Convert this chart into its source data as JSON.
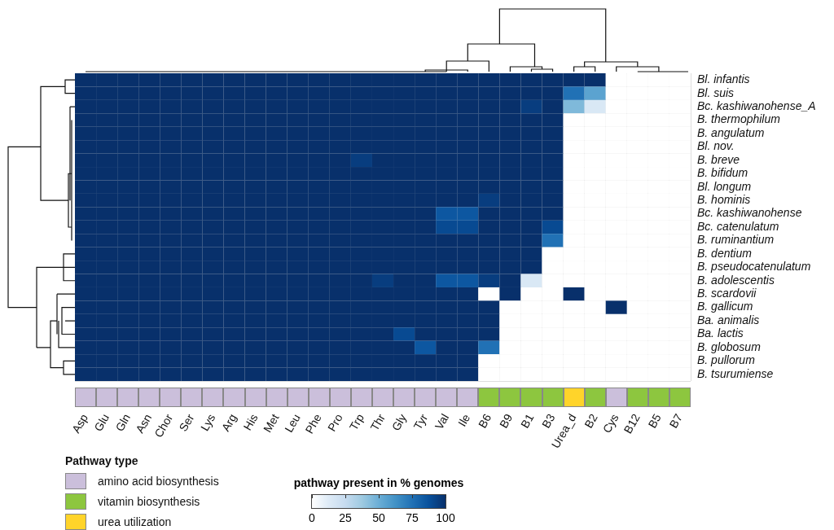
{
  "chart_data": [
    {
      "type": "heatmap",
      "grid": true,
      "clabel": "pathway present in % genomes",
      "clim": [
        0,
        100
      ],
      "cticks": [
        0,
        25,
        50,
        75,
        100
      ],
      "categories": [
        "Asp",
        "Glu",
        "Gln",
        "Asn",
        "Chor",
        "Ser",
        "Lys",
        "Arg",
        "His",
        "Met",
        "Leu",
        "Phe",
        "Pro",
        "Trp",
        "Thr",
        "Gly",
        "Tyr",
        "Val",
        "Ile",
        "B6",
        "B9",
        "B1",
        "B3",
        "Urea_d",
        "B2",
        "Cys",
        "B12",
        "B5",
        "B7"
      ],
      "y_categories": [
        "Bl. infantis",
        "Bl. suis",
        "Bc. kashiwanohense_A",
        "B. thermophilum",
        "B. angulatum",
        "Bl. nov.",
        "B. breve",
        "B. bifidum",
        "Bl. longum",
        "B. hominis",
        "Bc. kashiwanohense",
        "Bc. catenulatum",
        "B. ruminantium",
        "B. dentium",
        "B. pseudocatenulatum",
        "B. adolescentis",
        "B. scardovii",
        "B. gallicum",
        "Ba. animalis",
        "Ba. lactis",
        "B. globosum",
        "B. pullorum",
        "B. tsurumiense"
      ],
      "cells": [
        [
          100,
          100,
          100,
          100,
          100,
          100,
          100,
          100,
          100,
          100,
          100,
          100,
          100,
          100,
          100,
          100,
          100,
          100,
          100,
          100,
          100,
          100,
          100,
          100,
          100,
          0,
          0,
          0,
          0
        ],
        [
          100,
          100,
          100,
          100,
          100,
          100,
          100,
          100,
          100,
          100,
          100,
          100,
          100,
          100,
          100,
          100,
          100,
          100,
          100,
          100,
          100,
          100,
          100,
          75,
          55,
          0,
          0,
          0,
          0
        ],
        [
          100,
          100,
          100,
          100,
          100,
          100,
          100,
          100,
          100,
          100,
          100,
          100,
          100,
          100,
          100,
          100,
          100,
          100,
          100,
          100,
          100,
          95,
          100,
          45,
          15,
          0,
          0,
          0,
          0
        ],
        [
          100,
          100,
          100,
          100,
          100,
          100,
          100,
          100,
          100,
          100,
          100,
          100,
          100,
          100,
          100,
          100,
          100,
          100,
          100,
          100,
          100,
          100,
          100,
          0,
          0,
          0,
          0,
          0,
          0
        ],
        [
          100,
          100,
          100,
          100,
          100,
          100,
          100,
          100,
          100,
          100,
          100,
          100,
          100,
          100,
          100,
          100,
          100,
          100,
          100,
          100,
          100,
          100,
          100,
          0,
          0,
          0,
          0,
          0,
          0
        ],
        [
          100,
          100,
          100,
          100,
          100,
          100,
          100,
          100,
          100,
          100,
          100,
          100,
          100,
          100,
          100,
          100,
          100,
          100,
          100,
          100,
          100,
          100,
          100,
          0,
          0,
          0,
          0,
          0,
          0
        ],
        [
          100,
          100,
          100,
          100,
          100,
          100,
          100,
          100,
          100,
          100,
          100,
          100,
          100,
          95,
          100,
          100,
          100,
          100,
          100,
          100,
          100,
          100,
          100,
          0,
          0,
          0,
          0,
          0,
          0
        ],
        [
          100,
          100,
          100,
          100,
          100,
          100,
          100,
          100,
          100,
          100,
          100,
          100,
          100,
          100,
          100,
          100,
          100,
          100,
          100,
          100,
          100,
          100,
          100,
          0,
          0,
          0,
          0,
          0,
          0
        ],
        [
          100,
          100,
          100,
          100,
          100,
          100,
          100,
          100,
          100,
          100,
          100,
          100,
          100,
          100,
          100,
          100,
          100,
          100,
          100,
          100,
          100,
          100,
          100,
          0,
          0,
          0,
          0,
          0,
          0
        ],
        [
          100,
          100,
          100,
          100,
          100,
          100,
          100,
          100,
          100,
          100,
          100,
          100,
          100,
          100,
          100,
          100,
          100,
          100,
          100,
          95,
          100,
          100,
          100,
          0,
          0,
          0,
          0,
          0,
          0
        ],
        [
          100,
          100,
          100,
          100,
          100,
          100,
          100,
          100,
          100,
          100,
          100,
          100,
          100,
          100,
          100,
          100,
          100,
          85,
          85,
          100,
          100,
          100,
          100,
          0,
          0,
          0,
          0,
          0,
          0
        ],
        [
          100,
          100,
          100,
          100,
          100,
          100,
          100,
          100,
          100,
          100,
          100,
          100,
          100,
          100,
          100,
          100,
          100,
          90,
          90,
          100,
          100,
          100,
          90,
          0,
          0,
          0,
          0,
          0,
          0
        ],
        [
          100,
          100,
          100,
          100,
          100,
          100,
          100,
          100,
          100,
          100,
          100,
          100,
          100,
          100,
          100,
          100,
          100,
          100,
          100,
          100,
          100,
          100,
          75,
          0,
          0,
          0,
          0,
          0,
          0
        ],
        [
          100,
          100,
          100,
          100,
          100,
          100,
          100,
          100,
          100,
          100,
          100,
          100,
          100,
          100,
          100,
          100,
          100,
          100,
          100,
          100,
          100,
          100,
          0,
          0,
          0,
          0,
          0,
          0,
          0
        ],
        [
          100,
          100,
          100,
          100,
          100,
          100,
          100,
          100,
          100,
          100,
          100,
          100,
          100,
          100,
          100,
          100,
          100,
          100,
          100,
          100,
          100,
          100,
          0,
          0,
          0,
          0,
          0,
          0,
          0
        ],
        [
          100,
          100,
          100,
          100,
          100,
          100,
          100,
          100,
          100,
          100,
          100,
          100,
          100,
          100,
          95,
          100,
          100,
          85,
          85,
          95,
          100,
          15,
          0,
          0,
          0,
          0,
          0,
          0,
          0
        ],
        [
          100,
          100,
          100,
          100,
          100,
          100,
          100,
          100,
          100,
          100,
          100,
          100,
          100,
          100,
          100,
          100,
          100,
          100,
          100,
          0,
          100,
          0,
          0,
          100,
          0,
          0,
          0,
          0,
          0
        ],
        [
          100,
          100,
          100,
          100,
          100,
          100,
          100,
          100,
          100,
          100,
          100,
          100,
          100,
          100,
          100,
          100,
          100,
          100,
          100,
          100,
          0,
          0,
          0,
          0,
          0,
          100,
          0,
          0,
          0
        ],
        [
          100,
          100,
          100,
          100,
          100,
          100,
          100,
          100,
          100,
          100,
          100,
          100,
          100,
          100,
          100,
          100,
          100,
          100,
          100,
          100,
          0,
          0,
          0,
          0,
          0,
          0,
          0,
          0,
          0
        ],
        [
          100,
          100,
          100,
          100,
          100,
          100,
          100,
          100,
          100,
          100,
          100,
          100,
          100,
          100,
          100,
          90,
          100,
          100,
          100,
          100,
          0,
          0,
          0,
          0,
          0,
          0,
          0,
          0,
          0
        ],
        [
          100,
          100,
          100,
          100,
          100,
          100,
          100,
          100,
          100,
          100,
          100,
          100,
          100,
          100,
          100,
          100,
          85,
          100,
          100,
          75,
          0,
          0,
          0,
          0,
          0,
          0,
          0,
          0,
          0
        ],
        [
          100,
          100,
          100,
          100,
          100,
          100,
          100,
          100,
          100,
          100,
          100,
          100,
          100,
          100,
          100,
          100,
          100,
          100,
          100,
          0,
          0,
          0,
          0,
          0,
          0,
          0,
          0,
          0,
          0
        ],
        [
          100,
          100,
          100,
          100,
          100,
          100,
          100,
          100,
          100,
          100,
          100,
          100,
          100,
          100,
          100,
          100,
          100,
          100,
          100,
          0,
          0,
          0,
          0,
          0,
          0,
          0,
          0,
          0,
          0
        ]
      ]
    },
    {
      "type": "other",
      "legend_title": "Pathway type",
      "legend": "bottom left",
      "series": [
        {
          "name": "amino acid biosynthesis",
          "color": "#cbbfdb"
        },
        {
          "name": "vitamin biosynthesis",
          "color": "#8dc63f"
        },
        {
          "name": "urea utilization",
          "color": "#ffd42a"
        }
      ],
      "colors": [
        "#cbbfdb",
        "#cbbfdb",
        "#cbbfdb",
        "#cbbfdb",
        "#cbbfdb",
        "#cbbfdb",
        "#cbbfdb",
        "#cbbfdb",
        "#cbbfdb",
        "#cbbfdb",
        "#cbbfdb",
        "#cbbfdb",
        "#cbbfdb",
        "#cbbfdb",
        "#cbbfdb",
        "#cbbfdb",
        "#cbbfdb",
        "#cbbfdb",
        "#cbbfdb",
        "#8dc63f",
        "#8dc63f",
        "#8dc63f",
        "#8dc63f",
        "#ffd42a",
        "#8dc63f",
        "#cbbfdb",
        "#8dc63f",
        "#8dc63f",
        "#8dc63f"
      ]
    }
  ]
}
